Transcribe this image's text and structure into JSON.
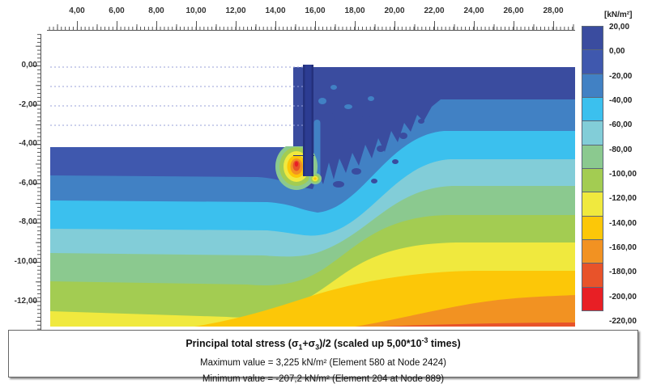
{
  "legend": {
    "unit": "[kN/m²]",
    "entries": [
      {
        "label": "20,00",
        "color": "#3a4c9f"
      },
      {
        "label": "0,00",
        "color": "#3f58ae"
      },
      {
        "label": "-20,00",
        "color": "#4181c4"
      },
      {
        "label": "-40,00",
        "color": "#3bc0ee"
      },
      {
        "label": "-60,00",
        "color": "#82cdd8"
      },
      {
        "label": "-80,00",
        "color": "#8bc98f"
      },
      {
        "label": "-100,00",
        "color": "#a3cc52"
      },
      {
        "label": "-120,00",
        "color": "#f0e93e"
      },
      {
        "label": "-140,00",
        "color": "#fcc708"
      },
      {
        "label": "-160,00",
        "color": "#f29222"
      },
      {
        "label": "-180,00",
        "color": "#e8532a"
      },
      {
        "label": "-200,00",
        "color": "#e81f25"
      }
    ],
    "end_label": "-220,00"
  },
  "rulers": {
    "top": [
      "4,00",
      "6,00",
      "8,00",
      "10,00",
      "12,00",
      "14,00",
      "16,00",
      "18,00",
      "20,00",
      "22,00",
      "24,00",
      "26,00",
      "28,00"
    ],
    "left": [
      "0,00",
      "-2,00",
      "-4,00",
      "-6,00",
      "-8,00",
      "-10,00",
      "-12,00"
    ]
  },
  "structure": {
    "wall_fill": "#2c3c92",
    "wall_edge": "#24317c",
    "dashed_line": "#98a0d8",
    "left_base": "#3f58ae",
    "right_base": "#3a4c9f"
  },
  "caption": {
    "title": {
      "p1": "Principal total stress (σ",
      "s1": "1",
      "p2": "+σ",
      "s2": "3",
      "p3": ")/2 (scaled up 5,00*10",
      "sup": "-3",
      "p4": " times)"
    },
    "max_line": "Maximum value = 3,225 kN/m² (Element 580 at Node 2424)",
    "min_line": "Minimum value = -207,2 kN/m² (Element 204 at Node 889)"
  },
  "chart_data": {
    "type": "heatmap",
    "title": "Principal total stress (σ1+σ3)/2 (scaled up 5,00*10-3 times)",
    "unit": "kN/m²",
    "x_ticks": [
      4,
      6,
      8,
      10,
      12,
      14,
      16,
      18,
      20,
      22,
      24,
      26,
      28
    ],
    "y_ticks": [
      0,
      -2,
      -4,
      -6,
      -8,
      -10,
      -12
    ],
    "levels": [
      20,
      0,
      -20,
      -40,
      -60,
      -80,
      -100,
      -120,
      -140,
      -160,
      -180,
      -200,
      -220
    ],
    "level_colors": [
      "#3a4c9f",
      "#3f58ae",
      "#4181c4",
      "#3bc0ee",
      "#82cdd8",
      "#8bc98f",
      "#a3cc52",
      "#f0e93e",
      "#fcc708",
      "#f29222",
      "#e8532a",
      "#e81f25"
    ],
    "legend_position": "right",
    "maximum": {
      "value": 3.225,
      "unit": "kN/m²",
      "element": 580,
      "node": 2424
    },
    "minimum": {
      "value": -207.2,
      "unit": "kN/m²",
      "element": 204,
      "node": 889
    },
    "features": {
      "excavation": {
        "x_range": [
          2.6,
          15.0
        ],
        "floor_depth": -4.2,
        "dashed_stage_levels": [
          0,
          -1,
          -2,
          -3
        ]
      },
      "wall": {
        "x": 15.5,
        "top": 0.2,
        "bottom": -5.7
      },
      "stress_concentration": {
        "x": 15.2,
        "depth": -5.1,
        "peak_band": "-200 to -220"
      },
      "contour_depths_left_of_wall": {
        "surface": -4.2,
        "band_top_depths": [
          -4.2,
          -5.6,
          -6.9,
          -8.3,
          -9.5,
          -11.0,
          -12.5
        ],
        "band_colors": [
          "#3f58ae",
          "#4181c4",
          "#3bc0ee",
          "#82cdd8",
          "#8bc98f",
          "#a3cc52",
          "#f0e93e"
        ]
      },
      "contour_depths_right_of_wall": {
        "surface": 0.0,
        "band_top_depths": [
          0.0,
          -1.7,
          -3.3,
          -4.8,
          -6.1,
          -7.6,
          -9.0,
          -10.5,
          -11.9,
          -13.2
        ],
        "band_colors": [
          "#3a4c9f",
          "#4181c4",
          "#3bc0ee",
          "#82cdd8",
          "#8bc98f",
          "#a3cc52",
          "#f0e93e",
          "#fcc708",
          "#f29222",
          "#e8532a"
        ]
      }
    }
  }
}
